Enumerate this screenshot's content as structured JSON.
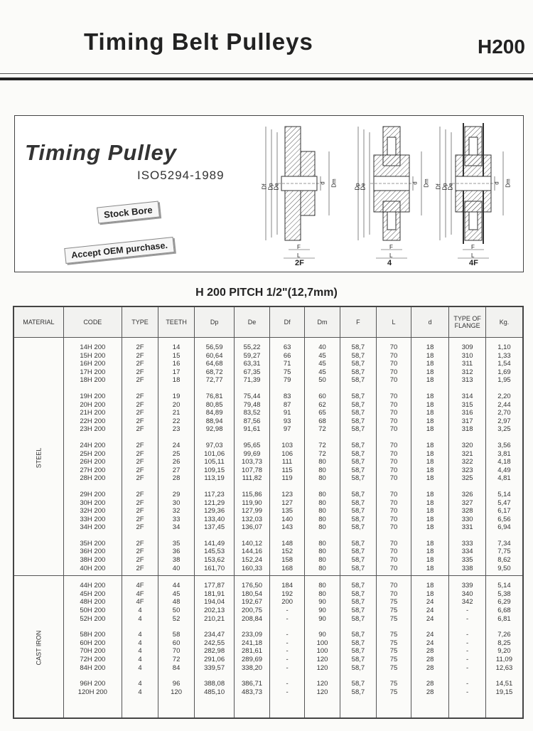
{
  "header": {
    "title": "Timing Belt Pulleys",
    "code": "H200"
  },
  "banner": {
    "title": "Timing Pulley",
    "standard": "ISO5294-1989",
    "stamp1": "Stock Bore",
    "stamp2": "Accept OEM purchase.",
    "diagrams": [
      {
        "label": "2F",
        "dims": [
          "Df",
          "Dp",
          "De",
          "d",
          "Dm",
          "F",
          "L"
        ]
      },
      {
        "label": "4",
        "dims": [
          "Dp",
          "De",
          "d",
          "Dm",
          "F",
          "L"
        ]
      },
      {
        "label": "4F",
        "dims": [
          "Df",
          "Dp",
          "De",
          "d",
          "Dm",
          "F",
          "L"
        ]
      }
    ]
  },
  "table": {
    "title": "H 200 PITCH 1/2\"(12,7mm)",
    "headers": [
      "MATERIAL",
      "CODE",
      "TYPE",
      "TEETH",
      "Dp",
      "De",
      "Df",
      "Dm",
      "F",
      "L",
      "d",
      "TYPE OF FLANGE",
      "Kg."
    ],
    "sections": [
      {
        "material": "STEEL",
        "groups": [
          [
            [
              "14H 200",
              "2F",
              "14",
              "56,59",
              "55,22",
              "63",
              "40",
              "58,7",
              "70",
              "18",
              "309",
              "1,10"
            ],
            [
              "15H 200",
              "2F",
              "15",
              "60,64",
              "59,27",
              "66",
              "45",
              "58,7",
              "70",
              "18",
              "310",
              "1,33"
            ],
            [
              "16H 200",
              "2F",
              "16",
              "64,68",
              "63,31",
              "71",
              "45",
              "58,7",
              "70",
              "18",
              "311",
              "1,54"
            ],
            [
              "17H 200",
              "2F",
              "17",
              "68,72",
              "67,35",
              "75",
              "45",
              "58,7",
              "70",
              "18",
              "312",
              "1,69"
            ],
            [
              "18H 200",
              "2F",
              "18",
              "72,77",
              "71,39",
              "79",
              "50",
              "58,7",
              "70",
              "18",
              "313",
              "1,95"
            ]
          ],
          [
            [
              "19H 200",
              "2F",
              "19",
              "76,81",
              "75,44",
              "83",
              "60",
              "58,7",
              "70",
              "18",
              "314",
              "2,20"
            ],
            [
              "20H 200",
              "2F",
              "20",
              "80,85",
              "79,48",
              "87",
              "62",
              "58,7",
              "70",
              "18",
              "315",
              "2,44"
            ],
            [
              "21H 200",
              "2F",
              "21",
              "84,89",
              "83,52",
              "91",
              "65",
              "58,7",
              "70",
              "18",
              "316",
              "2,70"
            ],
            [
              "22H 200",
              "2F",
              "22",
              "88,94",
              "87,56",
              "93",
              "68",
              "58,7",
              "70",
              "18",
              "317",
              "2,97"
            ],
            [
              "23H 200",
              "2F",
              "23",
              "92,98",
              "91,61",
              "97",
              "72",
              "58,7",
              "70",
              "18",
              "318",
              "3,25"
            ]
          ],
          [
            [
              "24H 200",
              "2F",
              "24",
              "97,03",
              "95,65",
              "103",
              "72",
              "58,7",
              "70",
              "18",
              "320",
              "3,56"
            ],
            [
              "25H 200",
              "2F",
              "25",
              "101,06",
              "99,69",
              "106",
              "72",
              "58,7",
              "70",
              "18",
              "321",
              "3,81"
            ],
            [
              "26H 200",
              "2F",
              "26",
              "105,11",
              "103,73",
              "111",
              "80",
              "58,7",
              "70",
              "18",
              "322",
              "4,18"
            ],
            [
              "27H 200",
              "2F",
              "27",
              "109,15",
              "107,78",
              "115",
              "80",
              "58,7",
              "70",
              "18",
              "323",
              "4,49"
            ],
            [
              "28H 200",
              "2F",
              "28",
              "113,19",
              "111,82",
              "119",
              "80",
              "58,7",
              "70",
              "18",
              "325",
              "4,81"
            ]
          ],
          [
            [
              "29H 200",
              "2F",
              "29",
              "117,23",
              "115,86",
              "123",
              "80",
              "58,7",
              "70",
              "18",
              "326",
              "5,14"
            ],
            [
              "30H 200",
              "2F",
              "30",
              "121,29",
              "119,90",
              "127",
              "80",
              "58,7",
              "70",
              "18",
              "327",
              "5,47"
            ],
            [
              "32H 200",
              "2F",
              "32",
              "129,36",
              "127,99",
              "135",
              "80",
              "58,7",
              "70",
              "18",
              "328",
              "6,17"
            ],
            [
              "33H 200",
              "2F",
              "33",
              "133,40",
              "132,03",
              "140",
              "80",
              "58,7",
              "70",
              "18",
              "330",
              "6,56"
            ],
            [
              "34H 200",
              "2F",
              "34",
              "137,45",
              "136,07",
              "143",
              "80",
              "58,7",
              "70",
              "18",
              "331",
              "6,94"
            ]
          ],
          [
            [
              "35H 200",
              "2F",
              "35",
              "141,49",
              "140,12",
              "148",
              "80",
              "58,7",
              "70",
              "18",
              "333",
              "7,34"
            ],
            [
              "36H 200",
              "2F",
              "36",
              "145,53",
              "144,16",
              "152",
              "80",
              "58,7",
              "70",
              "18",
              "334",
              "7,75"
            ],
            [
              "38H 200",
              "2F",
              "38",
              "153,62",
              "152,24",
              "158",
              "80",
              "58,7",
              "70",
              "18",
              "335",
              "8,62"
            ],
            [
              "40H 200",
              "2F",
              "40",
              "161,70",
              "160,33",
              "168",
              "80",
              "58,7",
              "70",
              "18",
              "338",
              "9,50"
            ]
          ]
        ]
      },
      {
        "material": "CAST IRON",
        "groups": [
          [
            [
              "44H 200",
              "4F",
              "44",
              "177,87",
              "176,50",
              "184",
              "80",
              "58,7",
              "70",
              "18",
              "339",
              "5,14"
            ],
            [
              "45H 200",
              "4F",
              "45",
              "181,91",
              "180,54",
              "192",
              "80",
              "58,7",
              "70",
              "18",
              "340",
              "5,38"
            ],
            [
              "48H 200",
              "4F",
              "48",
              "194,04",
              "192,67",
              "200",
              "90",
              "58,7",
              "75",
              "24",
              "342",
              "6,29"
            ],
            [
              "50H 200",
              "4",
              "50",
              "202,13",
              "200,75",
              "-",
              "90",
              "58,7",
              "75",
              "24",
              "-",
              "6,68"
            ],
            [
              "52H 200",
              "4",
              "52",
              "210,21",
              "208,84",
              "-",
              "90",
              "58,7",
              "75",
              "24",
              "-",
              "6,81"
            ]
          ],
          [
            [
              "58H 200",
              "4",
              "58",
              "234,47",
              "233,09",
              "-",
              "90",
              "58,7",
              "75",
              "24",
              "-",
              "7,26"
            ],
            [
              "60H 200",
              "4",
              "60",
              "242,55",
              "241,18",
              "-",
              "100",
              "58,7",
              "75",
              "24",
              "-",
              "8,25"
            ],
            [
              "70H 200",
              "4",
              "70",
              "282,98",
              "281,61",
              "-",
              "100",
              "58,7",
              "75",
              "28",
              "-",
              "9,20"
            ],
            [
              "72H 200",
              "4",
              "72",
              "291,06",
              "289,69",
              "-",
              "120",
              "58,7",
              "75",
              "28",
              "-",
              "11,09"
            ],
            [
              "84H 200",
              "4",
              "84",
              "339,57",
              "338,20",
              "-",
              "120",
              "58,7",
              "75",
              "28",
              "-",
              "12,63"
            ]
          ],
          [
            [
              "96H 200",
              "4",
              "96",
              "388,08",
              "386,71",
              "-",
              "120",
              "58,7",
              "75",
              "28",
              "-",
              "14,51"
            ],
            [
              "120H 200",
              "4",
              "120",
              "485,10",
              "483,73",
              "-",
              "120",
              "58,7",
              "75",
              "28",
              "-",
              "19,15"
            ]
          ]
        ]
      }
    ]
  }
}
